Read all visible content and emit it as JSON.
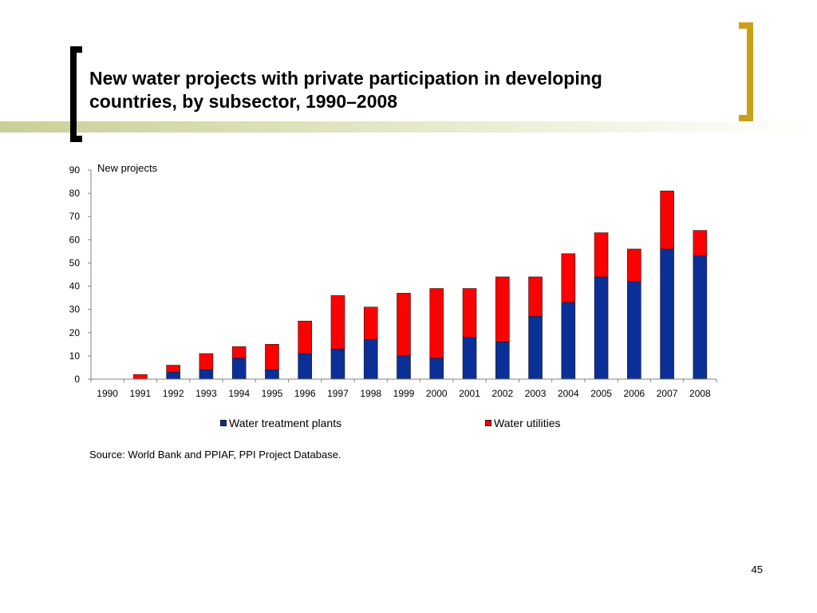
{
  "slide": {
    "title": "New water projects with private participation in developing countries, by subsector, 1990–2008",
    "source": "Source: World Bank and PPIAF, PPI Project Database.",
    "page_number": "45"
  },
  "colors": {
    "water_treatment_plants": "#0a2f96",
    "water_utilities": "#ff0000",
    "band": "#c9cf98",
    "left_bracket": "#000000",
    "right_bracket": "#c9a018"
  },
  "chart_data": {
    "type": "bar",
    "stacked": true,
    "title": "",
    "xlabel": "",
    "ylabel": "New projects",
    "ylim": [
      0,
      90
    ],
    "yticks": [
      0,
      10,
      20,
      30,
      40,
      50,
      60,
      70,
      80,
      90
    ],
    "grid": false,
    "legend_position": "bottom",
    "categories": [
      "1990",
      "1991",
      "1992",
      "1993",
      "1994",
      "1995",
      "1996",
      "1997",
      "1998",
      "1999",
      "2000",
      "2001",
      "2002",
      "2003",
      "2004",
      "2005",
      "2006",
      "2007",
      "2008"
    ],
    "series": [
      {
        "name": "Water treatment plants",
        "color": "#0a2f96",
        "values": [
          0,
          0,
          3,
          4,
          9,
          4,
          11,
          13,
          17,
          10,
          9,
          18,
          16,
          27,
          33,
          44,
          42,
          56,
          53
        ]
      },
      {
        "name": "Water utilities",
        "color": "#ff0000",
        "values": [
          0,
          2,
          3,
          7,
          5,
          11,
          14,
          23,
          14,
          27,
          30,
          21,
          28,
          17,
          21,
          19,
          14,
          25,
          11
        ]
      }
    ]
  }
}
